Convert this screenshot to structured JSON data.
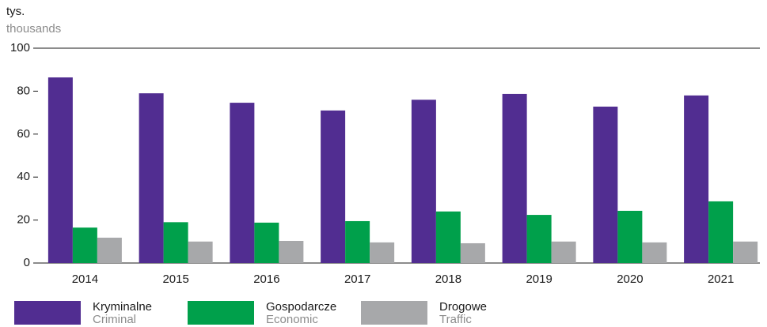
{
  "chart_data": {
    "type": "bar",
    "y_label": "tys.",
    "y_label_en": "thousands",
    "categories": [
      "2014",
      "2015",
      "2016",
      "2017",
      "2018",
      "2019",
      "2020",
      "2021"
    ],
    "series": [
      {
        "name": "Kryminalne",
        "name_en": "Criminal",
        "color": "#512d91",
        "values": [
          86.4,
          79,
          74.6,
          71,
          76,
          78.7,
          72.8,
          78
        ]
      },
      {
        "name": "Gospodarcze",
        "name_en": "Economic",
        "color": "#00a04b",
        "values": [
          16.5,
          19,
          18.8,
          19.5,
          24,
          22.4,
          24.3,
          28.7
        ]
      },
      {
        "name": "Drogowe",
        "name_en": "Traffic",
        "color": "#a7a8aa",
        "values": [
          11.8,
          10,
          10.3,
          9.6,
          9.2,
          10,
          9.6,
          10
        ]
      }
    ],
    "ylim": [
      0,
      100
    ],
    "yticks": [
      0,
      20,
      40,
      60,
      80,
      100
    ],
    "grid": false
  }
}
